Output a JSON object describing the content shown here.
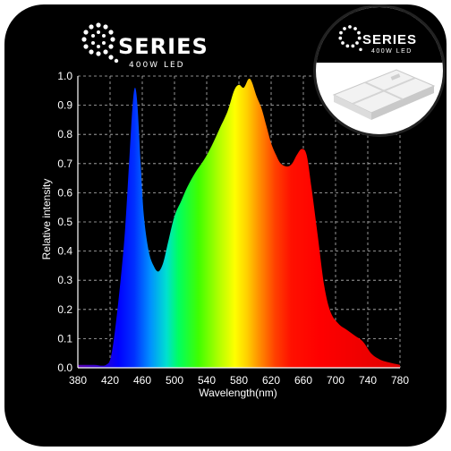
{
  "brand": {
    "logo_word": "SERIES",
    "logo_sub": "400W LED"
  },
  "chart_data": {
    "type": "area",
    "xlabel": "Wavelength(nm)",
    "ylabel": "Relative intensity",
    "xlim": [
      380,
      780
    ],
    "ylim": [
      0,
      1.0
    ],
    "x_ticks": [
      380,
      420,
      460,
      500,
      540,
      580,
      620,
      660,
      700,
      740,
      780
    ],
    "y_ticks": [
      0.0,
      0.1,
      0.2,
      0.3,
      0.4,
      0.5,
      0.6,
      0.7,
      0.8,
      0.9,
      1.0
    ],
    "grid": true,
    "fill": "visible spectrum gradient",
    "points": [
      [
        380,
        0.01
      ],
      [
        400,
        0.01
      ],
      [
        415,
        0.01
      ],
      [
        422,
        0.05
      ],
      [
        430,
        0.22
      ],
      [
        438,
        0.45
      ],
      [
        444,
        0.72
      ],
      [
        448,
        0.9
      ],
      [
        451,
        0.96
      ],
      [
        454,
        0.9
      ],
      [
        458,
        0.7
      ],
      [
        462,
        0.52
      ],
      [
        468,
        0.4
      ],
      [
        474,
        0.35
      ],
      [
        480,
        0.33
      ],
      [
        486,
        0.36
      ],
      [
        492,
        0.43
      ],
      [
        500,
        0.52
      ],
      [
        508,
        0.57
      ],
      [
        516,
        0.62
      ],
      [
        526,
        0.67
      ],
      [
        536,
        0.71
      ],
      [
        546,
        0.76
      ],
      [
        556,
        0.82
      ],
      [
        566,
        0.88
      ],
      [
        574,
        0.95
      ],
      [
        580,
        0.97
      ],
      [
        586,
        0.96
      ],
      [
        592,
        0.99
      ],
      [
        596,
        0.98
      ],
      [
        602,
        0.93
      ],
      [
        608,
        0.89
      ],
      [
        614,
        0.83
      ],
      [
        620,
        0.77
      ],
      [
        626,
        0.73
      ],
      [
        632,
        0.7
      ],
      [
        640,
        0.69
      ],
      [
        646,
        0.7
      ],
      [
        652,
        0.73
      ],
      [
        658,
        0.75
      ],
      [
        664,
        0.73
      ],
      [
        670,
        0.62
      ],
      [
        678,
        0.45
      ],
      [
        686,
        0.28
      ],
      [
        694,
        0.19
      ],
      [
        704,
        0.15
      ],
      [
        714,
        0.13
      ],
      [
        724,
        0.11
      ],
      [
        734,
        0.09
      ],
      [
        744,
        0.05
      ],
      [
        754,
        0.03
      ],
      [
        764,
        0.02
      ],
      [
        780,
        0.01
      ]
    ]
  },
  "colors": {
    "background": "#000000",
    "grid": "#bbbbbb",
    "axis": "#ffffff",
    "text": "#ffffff"
  }
}
